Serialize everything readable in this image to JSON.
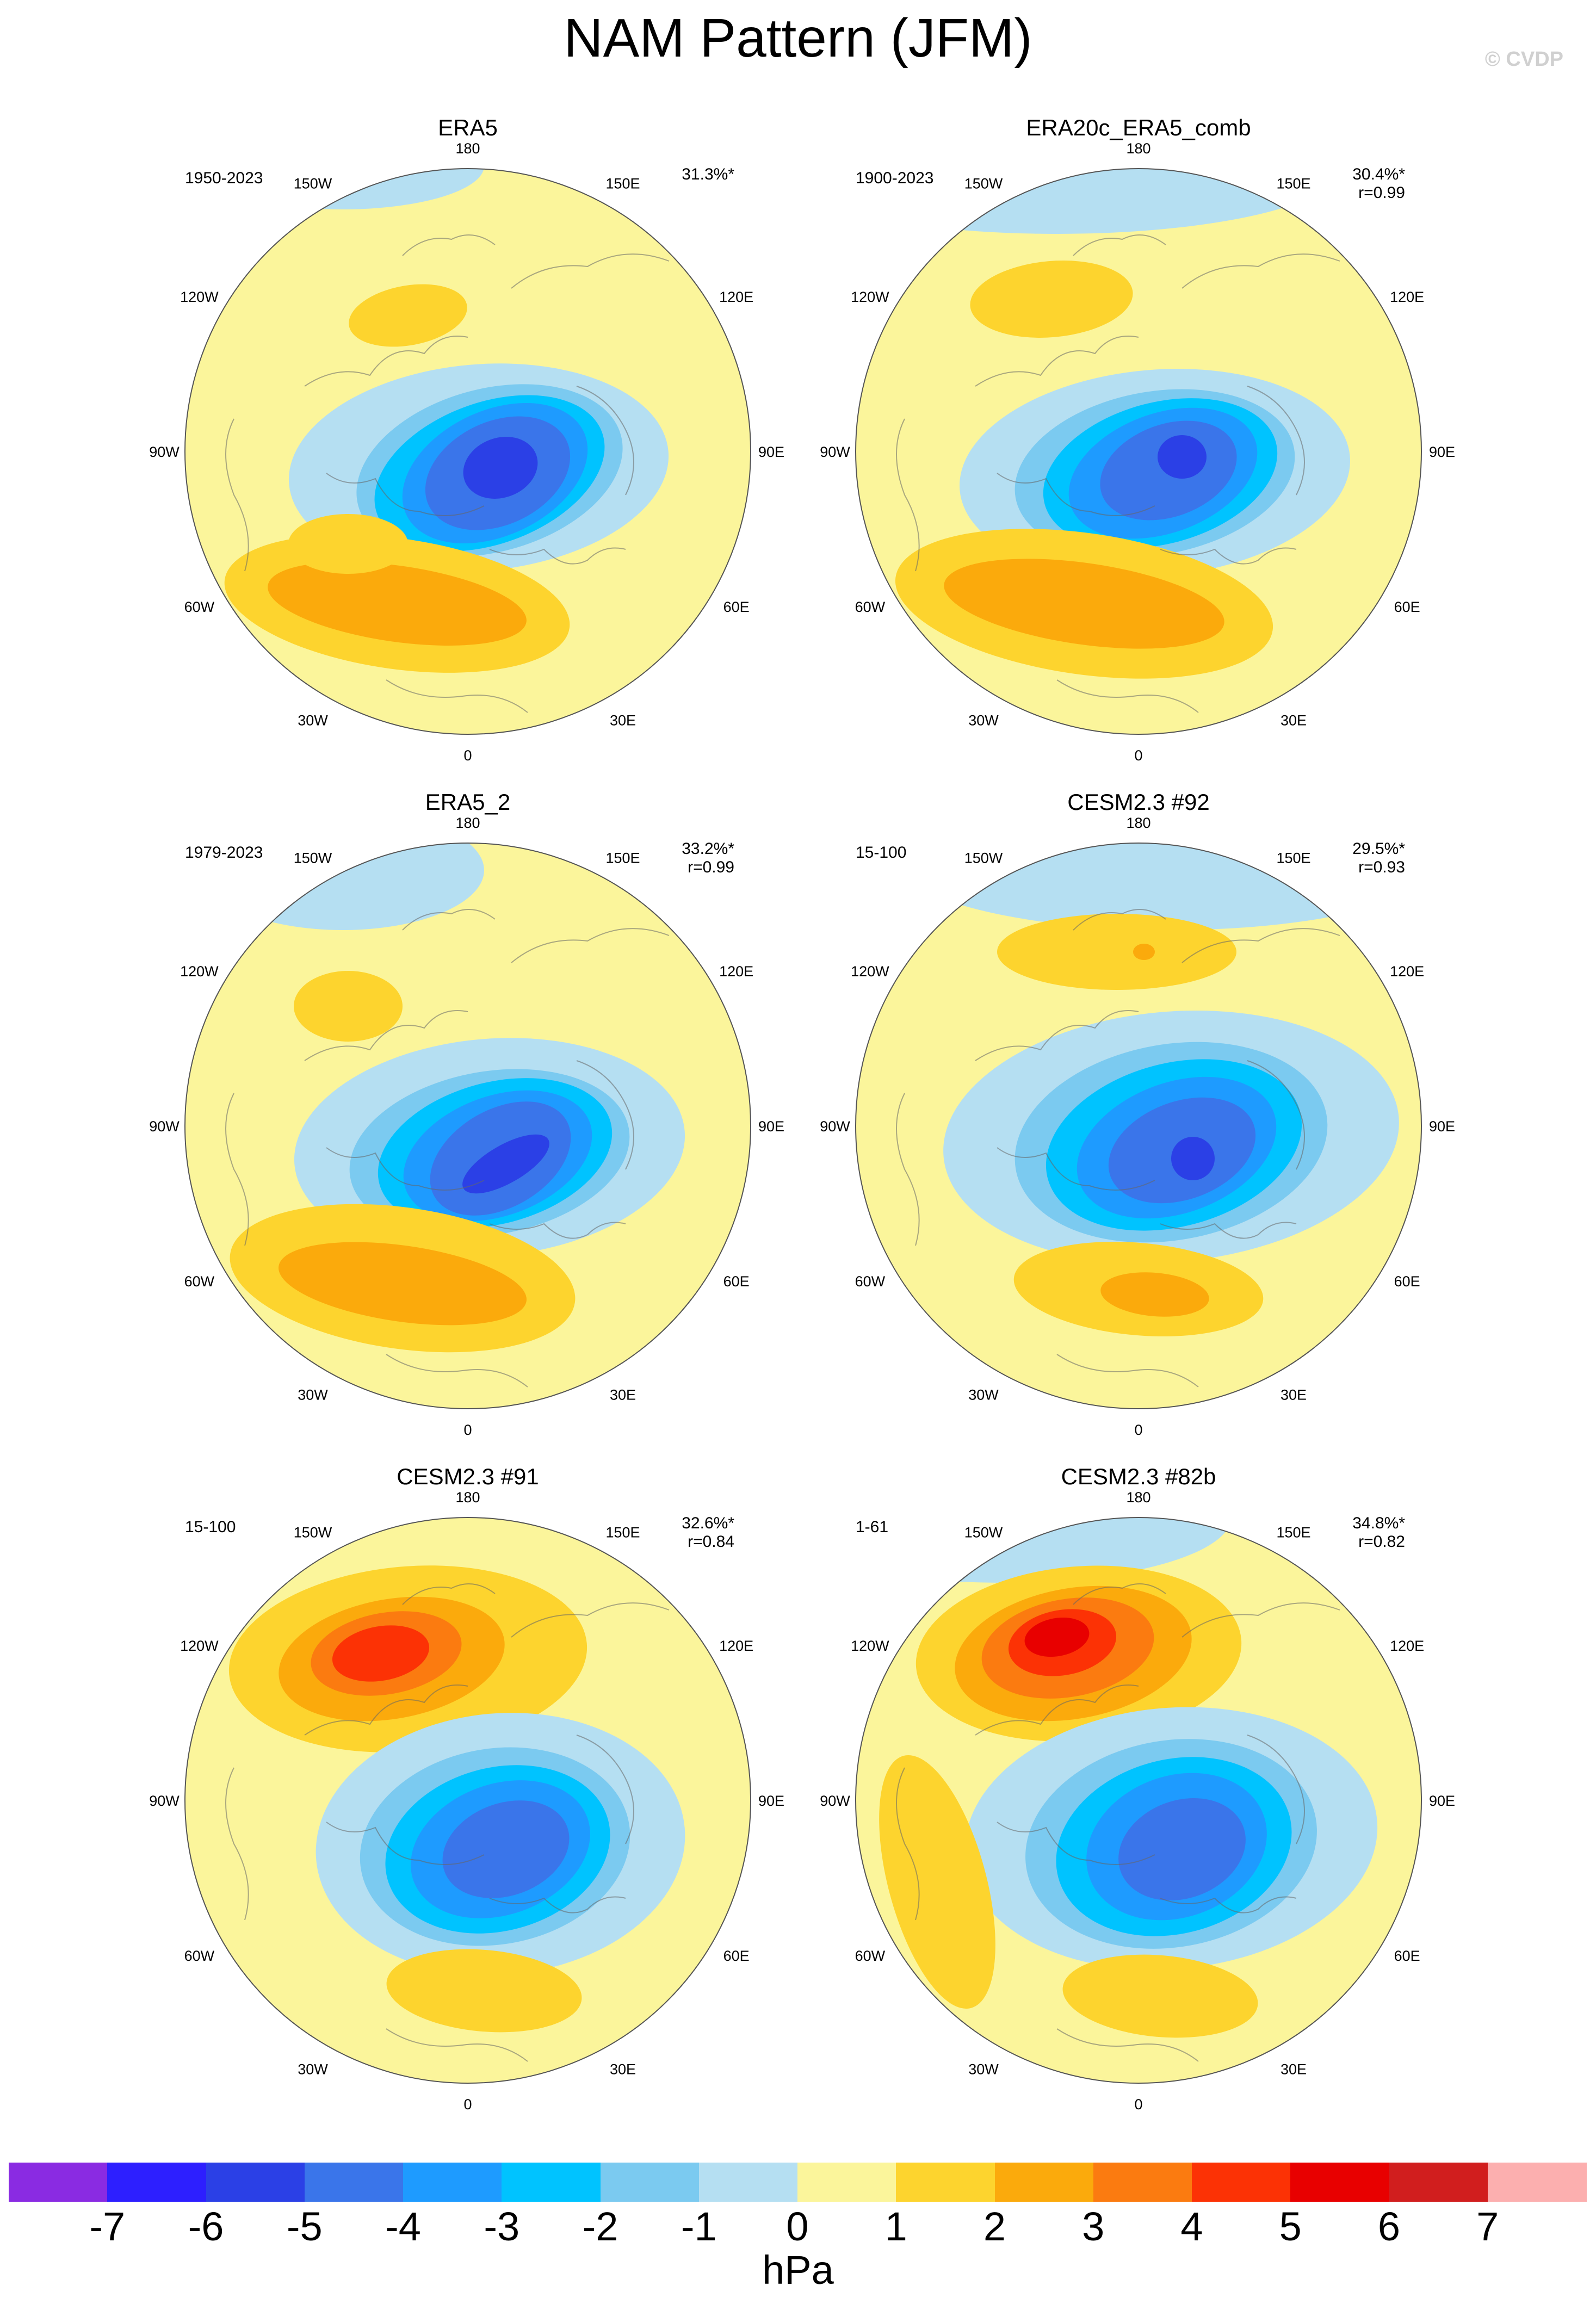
{
  "title": "NAM Pattern (JFM)",
  "copyright": "© CVDP",
  "lon_labels": [
    "180",
    "150E",
    "120E",
    "90E",
    "60E",
    "30E",
    "0",
    "30W",
    "60W",
    "90W",
    "120W",
    "150W"
  ],
  "panels": [
    {
      "name": "ERA5",
      "period": "1950-2023",
      "pct": "31.3%*",
      "r": ""
    },
    {
      "name": "ERA20c_ERA5_comb",
      "period": "1900-2023",
      "pct": "30.4%*",
      "r": "r=0.99"
    },
    {
      "name": "ERA5_2",
      "period": "1979-2023",
      "pct": "33.2%*",
      "r": "r=0.99"
    },
    {
      "name": "CESM2.3 #92",
      "period": "15-100",
      "pct": "29.5%*",
      "r": "r=0.93"
    },
    {
      "name": "CESM2.3 #91",
      "period": "15-100",
      "pct": "32.6%*",
      "r": "r=0.84"
    },
    {
      "name": "CESM2.3 #82b",
      "period": "1-61",
      "pct": "34.8%*",
      "r": "r=0.82"
    }
  ],
  "colorbar": {
    "unit": "hPa",
    "labels": [
      "-7",
      "-6",
      "-5",
      "-4",
      "-3",
      "-2",
      "-1",
      "0",
      "1",
      "2",
      "3",
      "4",
      "5",
      "6",
      "7"
    ],
    "colors": [
      "#8a2be2",
      "#2d1fff",
      "#2b40e6",
      "#3a75ea",
      "#1e9bff",
      "#00c3ff",
      "#7bcaf0",
      "#b5dff2",
      "#fbf59b",
      "#fdd42e",
      "#fbaa0c",
      "#fb7b10",
      "#fc3205",
      "#e80000",
      "#d11e1e",
      "#fcafaf"
    ]
  }
}
